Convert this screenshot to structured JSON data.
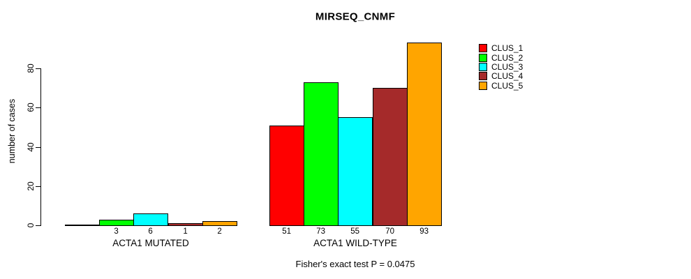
{
  "chart_data": {
    "type": "bar",
    "title": "MIRSEQ_CNMF",
    "ylabel": "number of cases",
    "xlabel": "",
    "yticks": [
      0,
      20,
      40,
      60,
      80
    ],
    "ylim": [
      0,
      93
    ],
    "grid": false,
    "legend_position": "right",
    "categories": [
      "ACTA1 MUTATED",
      "ACTA1 WILD-TYPE"
    ],
    "series": [
      {
        "name": "CLUS_1",
        "color": "#ff0000",
        "values": [
          0,
          51
        ]
      },
      {
        "name": "CLUS_2",
        "color": "#00ff00",
        "values": [
          3,
          73
        ]
      },
      {
        "name": "CLUS_3",
        "color": "#00ffff",
        "values": [
          6,
          55
        ]
      },
      {
        "name": "CLUS_4",
        "color": "#a52a2a",
        "values": [
          1,
          70
        ]
      },
      {
        "name": "CLUS_5",
        "color": "#ffa500",
        "values": [
          2,
          93
        ]
      }
    ],
    "bar_value_labels": [
      [
        "",
        "3",
        "6",
        "1",
        "2"
      ],
      [
        "51",
        "73",
        "55",
        "70",
        "93"
      ]
    ],
    "annotation": "Fisher's exact test P = 0.0475"
  },
  "colors": {
    "axis": "#000000",
    "background": "#ffffff",
    "bar_border": "#000000"
  }
}
